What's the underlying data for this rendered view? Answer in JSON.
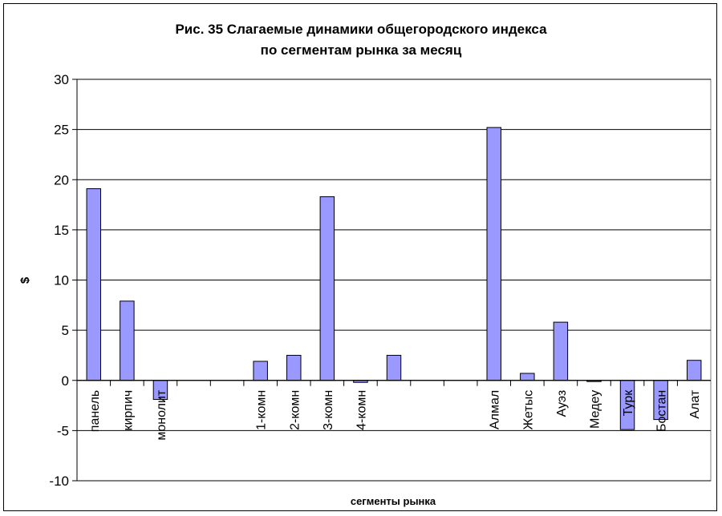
{
  "chart_data": {
    "type": "bar",
    "title_lines": [
      "Рис. 35 Слагаемые динамики общегородского индекса",
      "по  сегментам рынка за месяц"
    ],
    "xlabel": "сегменты рынка",
    "ylabel": "$",
    "ylim": [
      -10,
      30
    ],
    "yticks": [
      -10,
      -5,
      0,
      5,
      10,
      15,
      20,
      25,
      30
    ],
    "grid": true,
    "bar_color": "#9999FF",
    "categories": [
      "панель",
      "кирпич",
      "монолит",
      "",
      "",
      "1-комн",
      "2-комн",
      "3-комн",
      "4-комн",
      "",
      "",
      "",
      "Алмал",
      "Жетыс",
      "Ауэз",
      "Медеу",
      "Турк",
      "Бостан",
      "Алат"
    ],
    "values": [
      19.1,
      7.9,
      -1.9,
      null,
      null,
      1.9,
      2.5,
      18.3,
      -0.2,
      2.5,
      null,
      null,
      25.2,
      0.7,
      5.8,
      -0.1,
      -4.9,
      -3.9,
      2.0
    ]
  }
}
